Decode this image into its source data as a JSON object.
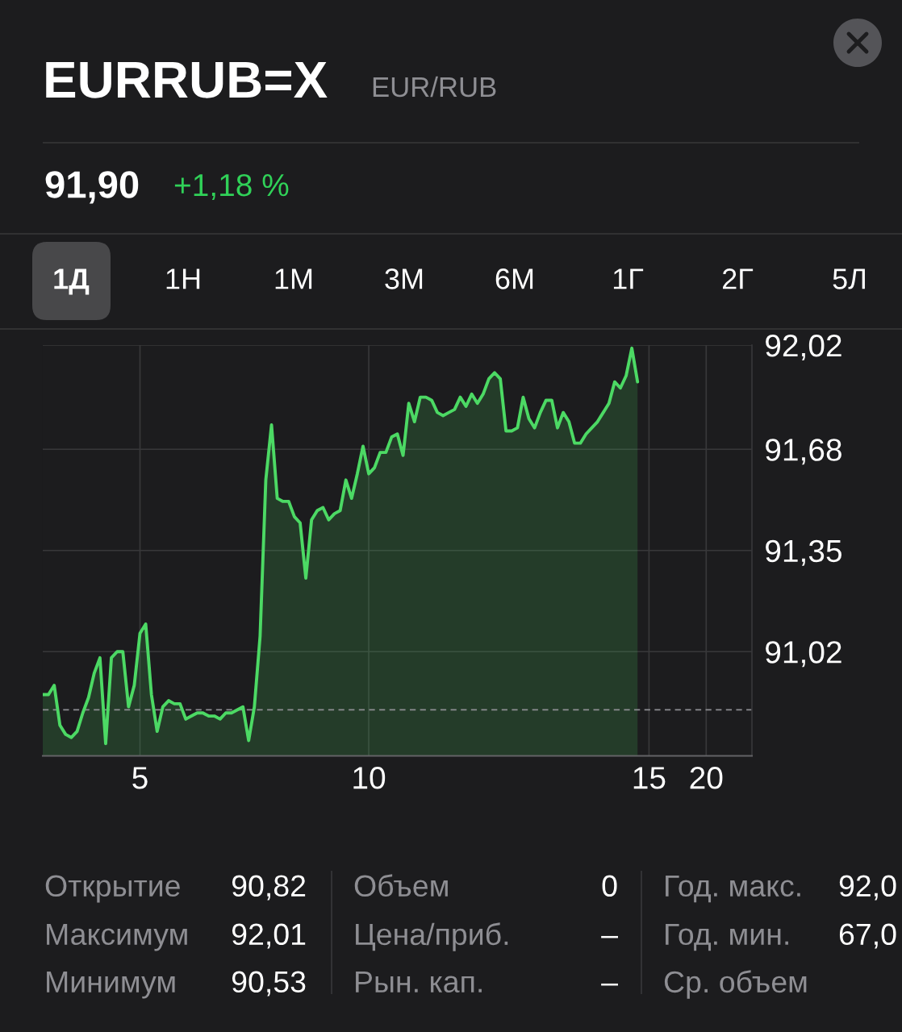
{
  "chart_data": {
    "type": "area",
    "title": "EURRUB=X",
    "subtitle": "EUR/RUB",
    "categories": [
      null,
      null,
      null,
      null,
      null,
      null,
      null,
      null,
      null,
      null,
      null,
      null,
      null,
      null,
      null,
      null,
      null,
      "5",
      null,
      null,
      null,
      null,
      null,
      null,
      null,
      null,
      null,
      null,
      null,
      null,
      null,
      null,
      null,
      null,
      null,
      null,
      null,
      null,
      null,
      null,
      null,
      null,
      null,
      null,
      null,
      null,
      null,
      null,
      null,
      null,
      null,
      null,
      null,
      null,
      null,
      null,
      null,
      "10",
      null,
      null,
      null,
      null,
      null,
      null,
      null,
      null,
      null,
      null,
      null,
      null,
      null,
      null,
      null,
      null,
      null,
      null,
      null,
      null,
      null,
      null,
      null,
      null,
      null,
      null,
      null,
      null,
      null,
      null,
      null,
      null,
      null,
      null,
      null,
      null,
      null,
      null,
      null,
      null,
      null,
      null,
      null,
      null,
      null,
      null,
      null,
      null,
      "15",
      null,
      null,
      null,
      null,
      null,
      null,
      null,
      null,
      null,
      "20",
      null,
      null,
      null,
      null,
      null,
      null,
      null,
      null
    ],
    "values": [
      90.88,
      90.88,
      90.91,
      90.78,
      90.75,
      90.74,
      90.76,
      90.82,
      90.87,
      90.95,
      91.0,
      90.72,
      91.0,
      91.02,
      91.02,
      90.84,
      90.91,
      91.08,
      91.11,
      90.88,
      90.76,
      90.84,
      90.86,
      90.85,
      90.85,
      90.8,
      90.81,
      90.82,
      90.82,
      90.81,
      90.81,
      90.8,
      90.82,
      90.82,
      90.83,
      90.84,
      90.73,
      90.84,
      91.07,
      91.58,
      91.76,
      91.52,
      91.51,
      91.51,
      91.46,
      91.44,
      91.26,
      91.45,
      91.48,
      91.49,
      91.45,
      91.47,
      91.48,
      91.58,
      91.52,
      91.6,
      91.69,
      91.6,
      91.62,
      91.67,
      91.67,
      91.72,
      91.73,
      91.66,
      91.83,
      91.77,
      91.85,
      91.85,
      91.84,
      91.8,
      91.79,
      91.8,
      91.81,
      91.85,
      91.82,
      91.86,
      91.83,
      91.86,
      91.91,
      91.93,
      91.91,
      91.74,
      91.74,
      91.75,
      91.85,
      91.78,
      91.75,
      91.8,
      91.84,
      91.84,
      91.75,
      91.8,
      91.77,
      91.7,
      91.7,
      91.73,
      91.75,
      91.77,
      91.8,
      91.83,
      91.9,
      91.88,
      91.92,
      92.01,
      91.9,
      null,
      null,
      null,
      null,
      null,
      null,
      null,
      null,
      null,
      null,
      null,
      null,
      null,
      null,
      null,
      null,
      null,
      null,
      null,
      null
    ],
    "color": "#4cd964",
    "ylim": [
      90.68,
      92.02
    ],
    "yticks": [
      {
        "value": 91.02,
        "label": "91,02"
      },
      {
        "value": 91.35,
        "label": "91,35"
      },
      {
        "value": 91.68,
        "label": "91,68"
      },
      {
        "value": 92.02,
        "label": "92,02"
      }
    ],
    "grid": true,
    "ref_lines": [
      {
        "axis": "y",
        "value": 90.83,
        "color": "#8e8e93",
        "line_style": "dashed"
      }
    ],
    "annotations": [
      "91,90",
      "+1,18 %",
      "1Д",
      "1Н",
      "1М",
      "3М",
      "6М",
      "1Г",
      "2Г",
      "5Л",
      "Открытие",
      "90,82",
      "Максимум",
      "92,01",
      "Минимум",
      "90,53",
      "Объем",
      "0",
      "Цена/приб.",
      "–",
      "Рын. кап.",
      "–",
      "Год. макс.",
      "92,0",
      "Год. мин.",
      "67,0",
      "Ср. объем"
    ]
  }
}
